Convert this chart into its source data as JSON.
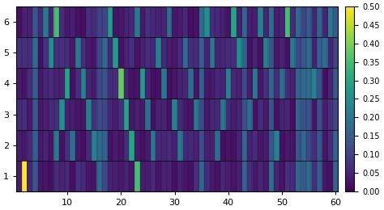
{
  "n_states": 6,
  "n_obs": 60,
  "vmin": 0,
  "vmax": 0.5,
  "colorbar_ticks": [
    0,
    0.05,
    0.1,
    0.15,
    0.2,
    0.25,
    0.3,
    0.35,
    0.4,
    0.45,
    0.5
  ],
  "xlabel_ticks": [
    10,
    20,
    30,
    40,
    50,
    60
  ],
  "ylabel_ticks": [
    1,
    2,
    3,
    4,
    5,
    6
  ],
  "figsize": [
    4.74,
    2.6
  ],
  "dpi": 100,
  "seed": 42,
  "background_low": 0.02,
  "background_high": 0.07,
  "highlight_prob_low": 0.15,
  "highlight_prob_high": 0.45,
  "highlights": [
    {
      "row": 0,
      "col": 1,
      "val": 0.5
    },
    {
      "row": 0,
      "col": 22,
      "val": 0.35
    },
    {
      "row": 1,
      "col": 7,
      "val": 0.2
    },
    {
      "row": 1,
      "col": 10,
      "val": 0.18
    },
    {
      "row": 1,
      "col": 14,
      "val": 0.22
    },
    {
      "row": 1,
      "col": 21,
      "val": 0.3
    },
    {
      "row": 1,
      "col": 25,
      "val": 0.2
    },
    {
      "row": 1,
      "col": 30,
      "val": 0.2
    },
    {
      "row": 1,
      "col": 37,
      "val": 0.18
    },
    {
      "row": 1,
      "col": 48,
      "val": 0.22
    },
    {
      "row": 2,
      "col": 8,
      "val": 0.25
    },
    {
      "row": 2,
      "col": 13,
      "val": 0.22
    },
    {
      "row": 2,
      "col": 20,
      "val": 0.3
    },
    {
      "row": 2,
      "col": 24,
      "val": 0.18
    },
    {
      "row": 2,
      "col": 29,
      "val": 0.22
    },
    {
      "row": 2,
      "col": 33,
      "val": 0.2
    },
    {
      "row": 2,
      "col": 38,
      "val": 0.2
    },
    {
      "row": 2,
      "col": 43,
      "val": 0.18
    },
    {
      "row": 3,
      "col": 9,
      "val": 0.3
    },
    {
      "row": 3,
      "col": 12,
      "val": 0.22
    },
    {
      "row": 3,
      "col": 19,
      "val": 0.38
    },
    {
      "row": 3,
      "col": 23,
      "val": 0.28
    },
    {
      "row": 3,
      "col": 27,
      "val": 0.2
    },
    {
      "row": 3,
      "col": 32,
      "val": 0.18
    },
    {
      "row": 3,
      "col": 39,
      "val": 0.22
    },
    {
      "row": 3,
      "col": 44,
      "val": 0.2
    },
    {
      "row": 3,
      "col": 49,
      "val": 0.18
    },
    {
      "row": 3,
      "col": 55,
      "val": 0.22
    },
    {
      "row": 4,
      "col": 6,
      "val": 0.25
    },
    {
      "row": 4,
      "col": 11,
      "val": 0.2
    },
    {
      "row": 4,
      "col": 18,
      "val": 0.28
    },
    {
      "row": 4,
      "col": 26,
      "val": 0.22
    },
    {
      "row": 4,
      "col": 31,
      "val": 0.18
    },
    {
      "row": 4,
      "col": 36,
      "val": 0.2
    },
    {
      "row": 4,
      "col": 41,
      "val": 0.25
    },
    {
      "row": 4,
      "col": 46,
      "val": 0.22
    },
    {
      "row": 4,
      "col": 51,
      "val": 0.2
    },
    {
      "row": 4,
      "col": 57,
      "val": 0.18
    },
    {
      "row": 5,
      "col": 5,
      "val": 0.2
    },
    {
      "row": 5,
      "col": 7,
      "val": 0.35
    },
    {
      "row": 5,
      "col": 17,
      "val": 0.28
    },
    {
      "row": 5,
      "col": 22,
      "val": 0.2
    },
    {
      "row": 5,
      "col": 28,
      "val": 0.18
    },
    {
      "row": 5,
      "col": 35,
      "val": 0.25
    },
    {
      "row": 5,
      "col": 40,
      "val": 0.3
    },
    {
      "row": 5,
      "col": 45,
      "val": 0.22
    },
    {
      "row": 5,
      "col": 50,
      "val": 0.35
    },
    {
      "row": 5,
      "col": 58,
      "val": 0.2
    }
  ]
}
